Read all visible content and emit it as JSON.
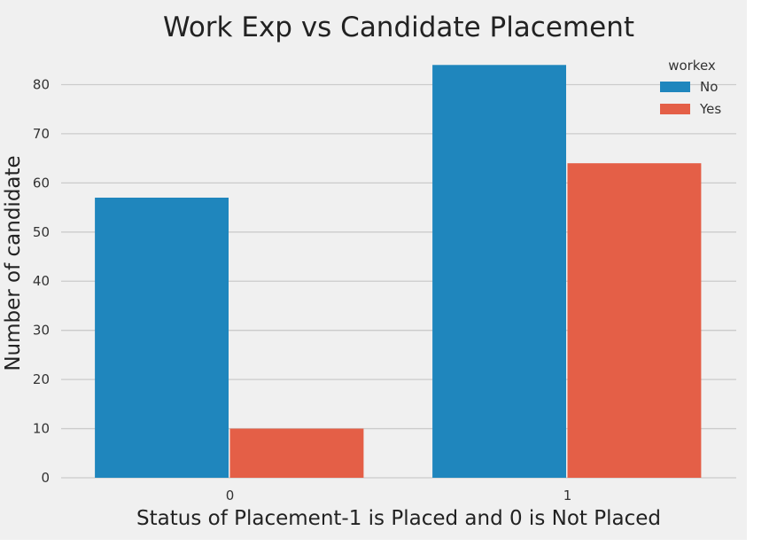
{
  "chart_data": {
    "type": "bar",
    "title": "Work Exp vs Candidate Placement",
    "xlabel": "Status of Placement-1 is Placed and 0 is Not Placed",
    "ylabel": "Number of candidate",
    "categories": [
      "0",
      "1"
    ],
    "series": [
      {
        "name": "No",
        "values": [
          57,
          84
        ],
        "color": "#1f86bd"
      },
      {
        "name": "Yes",
        "values": [
          10,
          64
        ],
        "color": "#e45f47"
      }
    ],
    "yticks": [
      0,
      10,
      20,
      30,
      40,
      50,
      60,
      70,
      80
    ],
    "ylim": [
      0,
      88.2
    ],
    "grid": true,
    "legend": {
      "title": "workex",
      "placement": "top-right"
    }
  }
}
